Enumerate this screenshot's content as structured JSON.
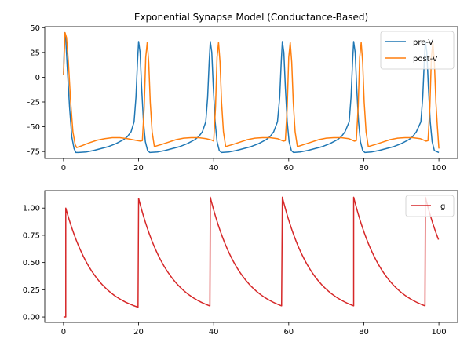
{
  "chart_data": [
    {
      "type": "line",
      "title": "Exponential Synapse Model (Conductance-Based)",
      "xlabel": "",
      "ylabel": "",
      "xlim": [
        -5,
        105
      ],
      "ylim": [
        -82,
        51
      ],
      "xticks": [
        0,
        20,
        40,
        60,
        80,
        100
      ],
      "yticks": [
        -75,
        -50,
        -25,
        0,
        25,
        50
      ],
      "legend_position": "top-right",
      "grid": false,
      "series": [
        {
          "name": "pre-V",
          "color": "#1f77b4",
          "x": [
            0,
            0.3,
            0.6,
            1.0,
            1.6,
            2.2,
            2.8,
            3.3,
            4,
            6,
            8,
            10,
            12,
            14,
            16,
            17,
            18,
            18.8,
            19.3,
            19.7,
            20.0,
            20.4,
            20.8,
            21.3,
            21.8,
            22.4,
            23,
            25,
            27,
            29,
            31,
            33,
            35,
            36,
            37,
            37.9,
            38.4,
            38.8,
            39.1,
            39.5,
            39.9,
            40.4,
            40.9,
            41.5,
            42.1,
            44,
            46,
            48,
            50,
            52,
            54,
            55,
            56,
            57,
            57.6,
            58.0,
            58.3,
            58.7,
            59.1,
            59.6,
            60.1,
            60.7,
            61.3,
            63,
            65,
            67,
            69,
            71,
            73,
            74,
            75,
            76.1,
            76.6,
            77.0,
            77.3,
            77.7,
            78.1,
            78.6,
            79.1,
            79.7,
            80.3,
            82,
            84,
            86,
            88,
            90,
            92,
            93,
            94,
            95.2,
            95.7,
            96.1,
            96.4,
            96.8,
            97.2,
            97.7,
            98.2,
            98.8,
            100
          ],
          "y": [
            2,
            45,
            38,
            10,
            -30,
            -60,
            -72,
            -76,
            -76,
            -75.5,
            -74,
            -72,
            -70,
            -67,
            -63,
            -60,
            -55,
            -45,
            -20,
            15,
            36,
            25,
            -10,
            -45,
            -65,
            -74,
            -76,
            -75.5,
            -74,
            -72,
            -70,
            -67,
            -63,
            -60,
            -55,
            -45,
            -20,
            15,
            36,
            25,
            -10,
            -45,
            -65,
            -74,
            -76,
            -75.5,
            -74,
            -72,
            -70,
            -67,
            -63,
            -60,
            -55,
            -45,
            -20,
            15,
            36,
            25,
            -10,
            -45,
            -65,
            -74,
            -76,
            -75.5,
            -74,
            -72,
            -70,
            -67,
            -63,
            -60,
            -55,
            -45,
            -20,
            15,
            36,
            25,
            -10,
            -45,
            -65,
            -74,
            -76,
            -75.5,
            -74,
            -72,
            -70,
            -67,
            -63,
            -60,
            -55,
            -45,
            -20,
            15,
            36,
            25,
            -10,
            -45,
            -65,
            -74,
            -76
          ]
        },
        {
          "name": "post-V",
          "color": "#ff7f0e",
          "x": [
            0,
            0.4,
            0.8,
            1.3,
            1.9,
            2.5,
            3.1,
            3.5,
            5,
            7,
            9,
            11,
            13,
            15,
            17,
            19,
            20.5,
            21.0,
            21.5,
            21.9,
            22.3,
            22.7,
            23.1,
            23.6,
            24.2,
            26,
            28,
            30,
            32,
            34,
            36,
            38,
            39.5,
            40.0,
            40.5,
            40.9,
            41.3,
            41.7,
            42.1,
            42.6,
            43.2,
            45,
            47,
            49,
            51,
            53,
            55,
            57,
            58.6,
            59.1,
            59.6,
            60.0,
            60.4,
            60.8,
            61.2,
            61.7,
            62.3,
            64,
            66,
            68,
            70,
            72,
            74,
            76,
            77.5,
            78.0,
            78.5,
            78.9,
            79.3,
            79.7,
            80.1,
            80.6,
            81.2,
            83,
            85,
            87,
            89,
            91,
            93,
            95,
            96.6,
            97.1,
            97.6,
            98.0,
            98.4,
            98.8,
            99.2,
            99.6,
            100
          ],
          "y": [
            2,
            45,
            40,
            15,
            -25,
            -55,
            -68,
            -71,
            -69,
            -66,
            -63.5,
            -62,
            -61,
            -61,
            -62,
            -63.5,
            -64.5,
            -64,
            -30,
            20,
            35,
            15,
            -25,
            -55,
            -70,
            -68,
            -65.5,
            -63,
            -61.5,
            -61,
            -61,
            -62,
            -63.5,
            -64.5,
            -30,
            20,
            35,
            15,
            -25,
            -55,
            -70,
            -68,
            -65.5,
            -63,
            -61.5,
            -61,
            -61,
            -62,
            -64.5,
            -64,
            -30,
            20,
            35,
            15,
            -25,
            -55,
            -70,
            -68,
            -65.5,
            -63,
            -61.5,
            -61,
            -61,
            -62,
            -64.5,
            -64,
            -30,
            20,
            35,
            15,
            -25,
            -55,
            -70,
            -68,
            -65.5,
            -63,
            -61.5,
            -61,
            -61,
            -62,
            -64.5,
            -64,
            -30,
            20,
            35,
            15,
            -25,
            -50,
            -72
          ]
        }
      ]
    },
    {
      "type": "line",
      "title": "",
      "xlabel": "",
      "ylabel": "",
      "xlim": [
        -5,
        105
      ],
      "ylim": [
        -0.05,
        1.16
      ],
      "xticks": [
        0,
        20,
        40,
        60,
        80,
        100
      ],
      "yticks": [
        0.0,
        0.25,
        0.5,
        0.75,
        1.0
      ],
      "legend_position": "top-right",
      "grid": false,
      "series": [
        {
          "name": "g",
          "color": "#d62728",
          "peaks": [
            {
              "t": 0.6,
              "g": 1.0
            },
            {
              "t": 20.0,
              "g": 1.09
            },
            {
              "t": 39.1,
              "g": 1.1
            },
            {
              "t": 58.3,
              "g": 1.1
            },
            {
              "t": 77.3,
              "g": 1.1
            },
            {
              "t": 96.4,
              "g": 1.1
            }
          ],
          "baseline": {
            "t_start": 0,
            "t_end": 0.6,
            "g": 0.0
          },
          "decay_tau": 8.0,
          "t_end": 100
        }
      ]
    }
  ]
}
